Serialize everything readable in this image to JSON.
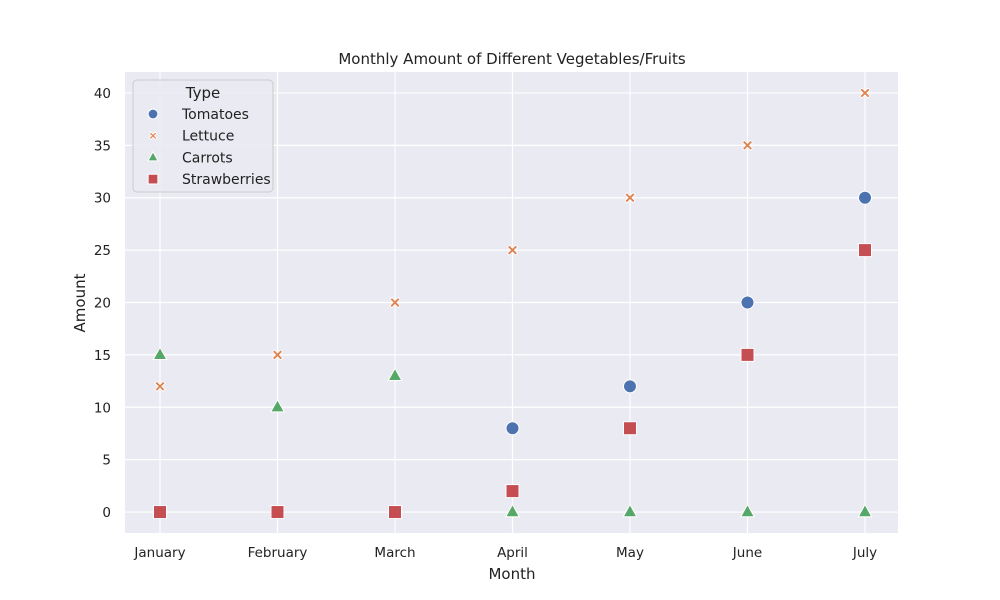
{
  "chart_data": {
    "type": "scatter",
    "title": "Monthly Amount of Different Vegetables/Fruits",
    "xlabel": "Month",
    "ylabel": "Amount",
    "categories": [
      "January",
      "February",
      "March",
      "April",
      "May",
      "June",
      "July"
    ],
    "ylim": [
      -2,
      42
    ],
    "yticks": [
      0,
      5,
      10,
      15,
      20,
      25,
      30,
      35,
      40
    ],
    "grid": true,
    "legend": {
      "title": "Type",
      "placement": "top-left"
    },
    "series": [
      {
        "name": "Tomatoes",
        "marker": "circle",
        "color": "#4c72b0",
        "values": [
          0,
          0,
          0,
          8,
          12,
          20,
          30
        ]
      },
      {
        "name": "Lettuce",
        "marker": "x",
        "color": "#dd8452",
        "values": [
          12,
          15,
          20,
          25,
          30,
          35,
          40
        ]
      },
      {
        "name": "Carrots",
        "marker": "triangle",
        "color": "#55a868",
        "values": [
          15,
          10,
          13,
          0,
          0,
          0,
          0
        ]
      },
      {
        "name": "Strawberries",
        "marker": "square",
        "color": "#c44e52",
        "values": [
          0,
          0,
          0,
          2,
          8,
          15,
          25
        ]
      }
    ]
  }
}
